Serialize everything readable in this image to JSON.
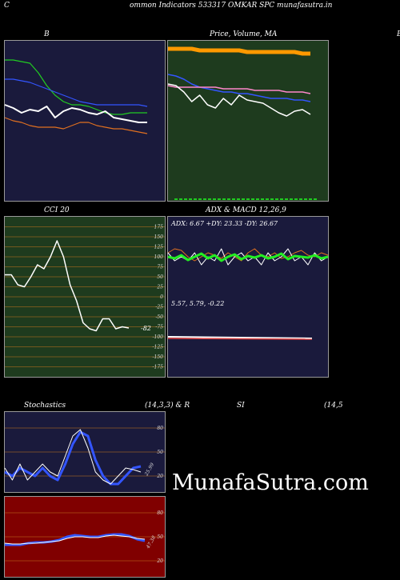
{
  "page_title": "ommon  Indicators 533317 OMKAR SPC munafasutra.in",
  "left_letter": "C",
  "right_letter": "B",
  "watermark": "MunafaSutra.com",
  "colors": {
    "price_bg": "#1e3b1e",
    "dark_bg": "#1a1a3c",
    "rsi_bg": "#800000",
    "grid": "#c8781e"
  },
  "chart_data": [
    {
      "id": "bollinger",
      "type": "line",
      "title": "B",
      "series": [
        {
          "color": "#22cc22",
          "values": [
            88,
            88,
            87,
            86,
            80,
            72,
            66,
            62,
            60,
            60,
            59,
            57,
            55,
            54,
            54,
            55,
            55,
            55
          ]
        },
        {
          "color": "#3355ff",
          "values": [
            76,
            76,
            75,
            74,
            72,
            70,
            68,
            66,
            64,
            62,
            61,
            60,
            60,
            60,
            60,
            60,
            60,
            59
          ]
        },
        {
          "color": "#ffffff",
          "values": [
            60,
            58,
            55,
            57,
            56,
            59,
            52,
            56,
            58,
            57,
            55,
            54,
            56,
            52,
            51,
            50,
            49,
            49
          ]
        },
        {
          "color": "#e07020",
          "values": [
            52,
            50,
            49,
            47,
            46,
            46,
            46,
            45,
            47,
            49,
            49,
            47,
            46,
            45,
            45,
            44,
            43,
            42
          ]
        }
      ]
    },
    {
      "id": "price",
      "type": "line",
      "title": "Price,  Volume,  MA",
      "series": [
        {
          "color": "#ff9900",
          "values": [
            95,
            95,
            95,
            95,
            94,
            94,
            94,
            94,
            94,
            94,
            93,
            93,
            93,
            93,
            93,
            93,
            93,
            92,
            92
          ]
        },
        {
          "color": "#3355ff",
          "values": [
            79,
            78,
            76,
            73,
            71,
            70,
            69,
            68,
            68,
            67,
            67,
            66,
            65,
            64,
            64,
            64,
            63,
            63,
            62
          ]
        },
        {
          "color": "#ff88cc",
          "values": [
            72,
            71,
            71,
            71,
            71,
            71,
            71,
            70,
            70,
            70,
            70,
            69,
            69,
            69,
            69,
            68,
            68,
            68,
            67
          ]
        },
        {
          "color": "#ffffff",
          "values": [
            73,
            72,
            68,
            62,
            66,
            60,
            58,
            64,
            60,
            66,
            63,
            62,
            61,
            58,
            55,
            53,
            56,
            57,
            54
          ]
        }
      ]
    },
    {
      "id": "cci",
      "type": "line",
      "title": "CCI 20",
      "yticks": [
        175,
        150,
        125,
        100,
        75,
        50,
        25,
        0,
        -25,
        -50,
        -75,
        -100,
        -125,
        -150,
        -175
      ],
      "value_label": "-82",
      "series": [
        {
          "color": "#ffffff",
          "values": [
            55,
            55,
            30,
            25,
            50,
            80,
            70,
            100,
            140,
            100,
            30,
            -10,
            -65,
            -80,
            -85,
            -55,
            -55,
            -80,
            -75,
            -78
          ]
        }
      ]
    },
    {
      "id": "adx",
      "type": "line",
      "title": "ADX  & MACD 12,26,9",
      "adx_label": "ADX: 6.67 +DY: 23.33 -DY: 26.67",
      "macd_label": "5.57,  5.79,  -0.22"
    },
    {
      "id": "stochastics",
      "type": "line",
      "title": "Stochastics",
      "params": "(14,3,3) & R",
      "yticks": [
        80,
        50,
        20
      ],
      "value_label": "25.99",
      "series": [
        {
          "color": "#3355ff",
          "values": [
            25,
            20,
            30,
            25,
            20,
            30,
            20,
            15,
            35,
            60,
            75,
            70,
            40,
            20,
            10,
            10,
            20,
            30,
            32
          ]
        },
        {
          "color": "#ffffff",
          "values": [
            30,
            15,
            35,
            15,
            25,
            35,
            25,
            20,
            45,
            70,
            78,
            55,
            25,
            15,
            10,
            20,
            30,
            28,
            25
          ]
        }
      ]
    },
    {
      "id": "rsi",
      "type": "line",
      "title": "SI",
      "params": "(14,5",
      "yticks": [
        80,
        50,
        20
      ],
      "value_label": "47.38",
      "series": [
        {
          "color": "#3355ff",
          "values": [
            40,
            40,
            40,
            42,
            43,
            43,
            44,
            46,
            50,
            52,
            51,
            50,
            50,
            52,
            53,
            53,
            51,
            47,
            45
          ]
        },
        {
          "color": "#ffffff",
          "values": [
            42,
            41,
            41,
            42,
            42,
            43,
            44,
            45,
            48,
            50,
            50,
            49,
            49,
            51,
            52,
            51,
            50,
            48,
            47
          ]
        }
      ]
    }
  ]
}
